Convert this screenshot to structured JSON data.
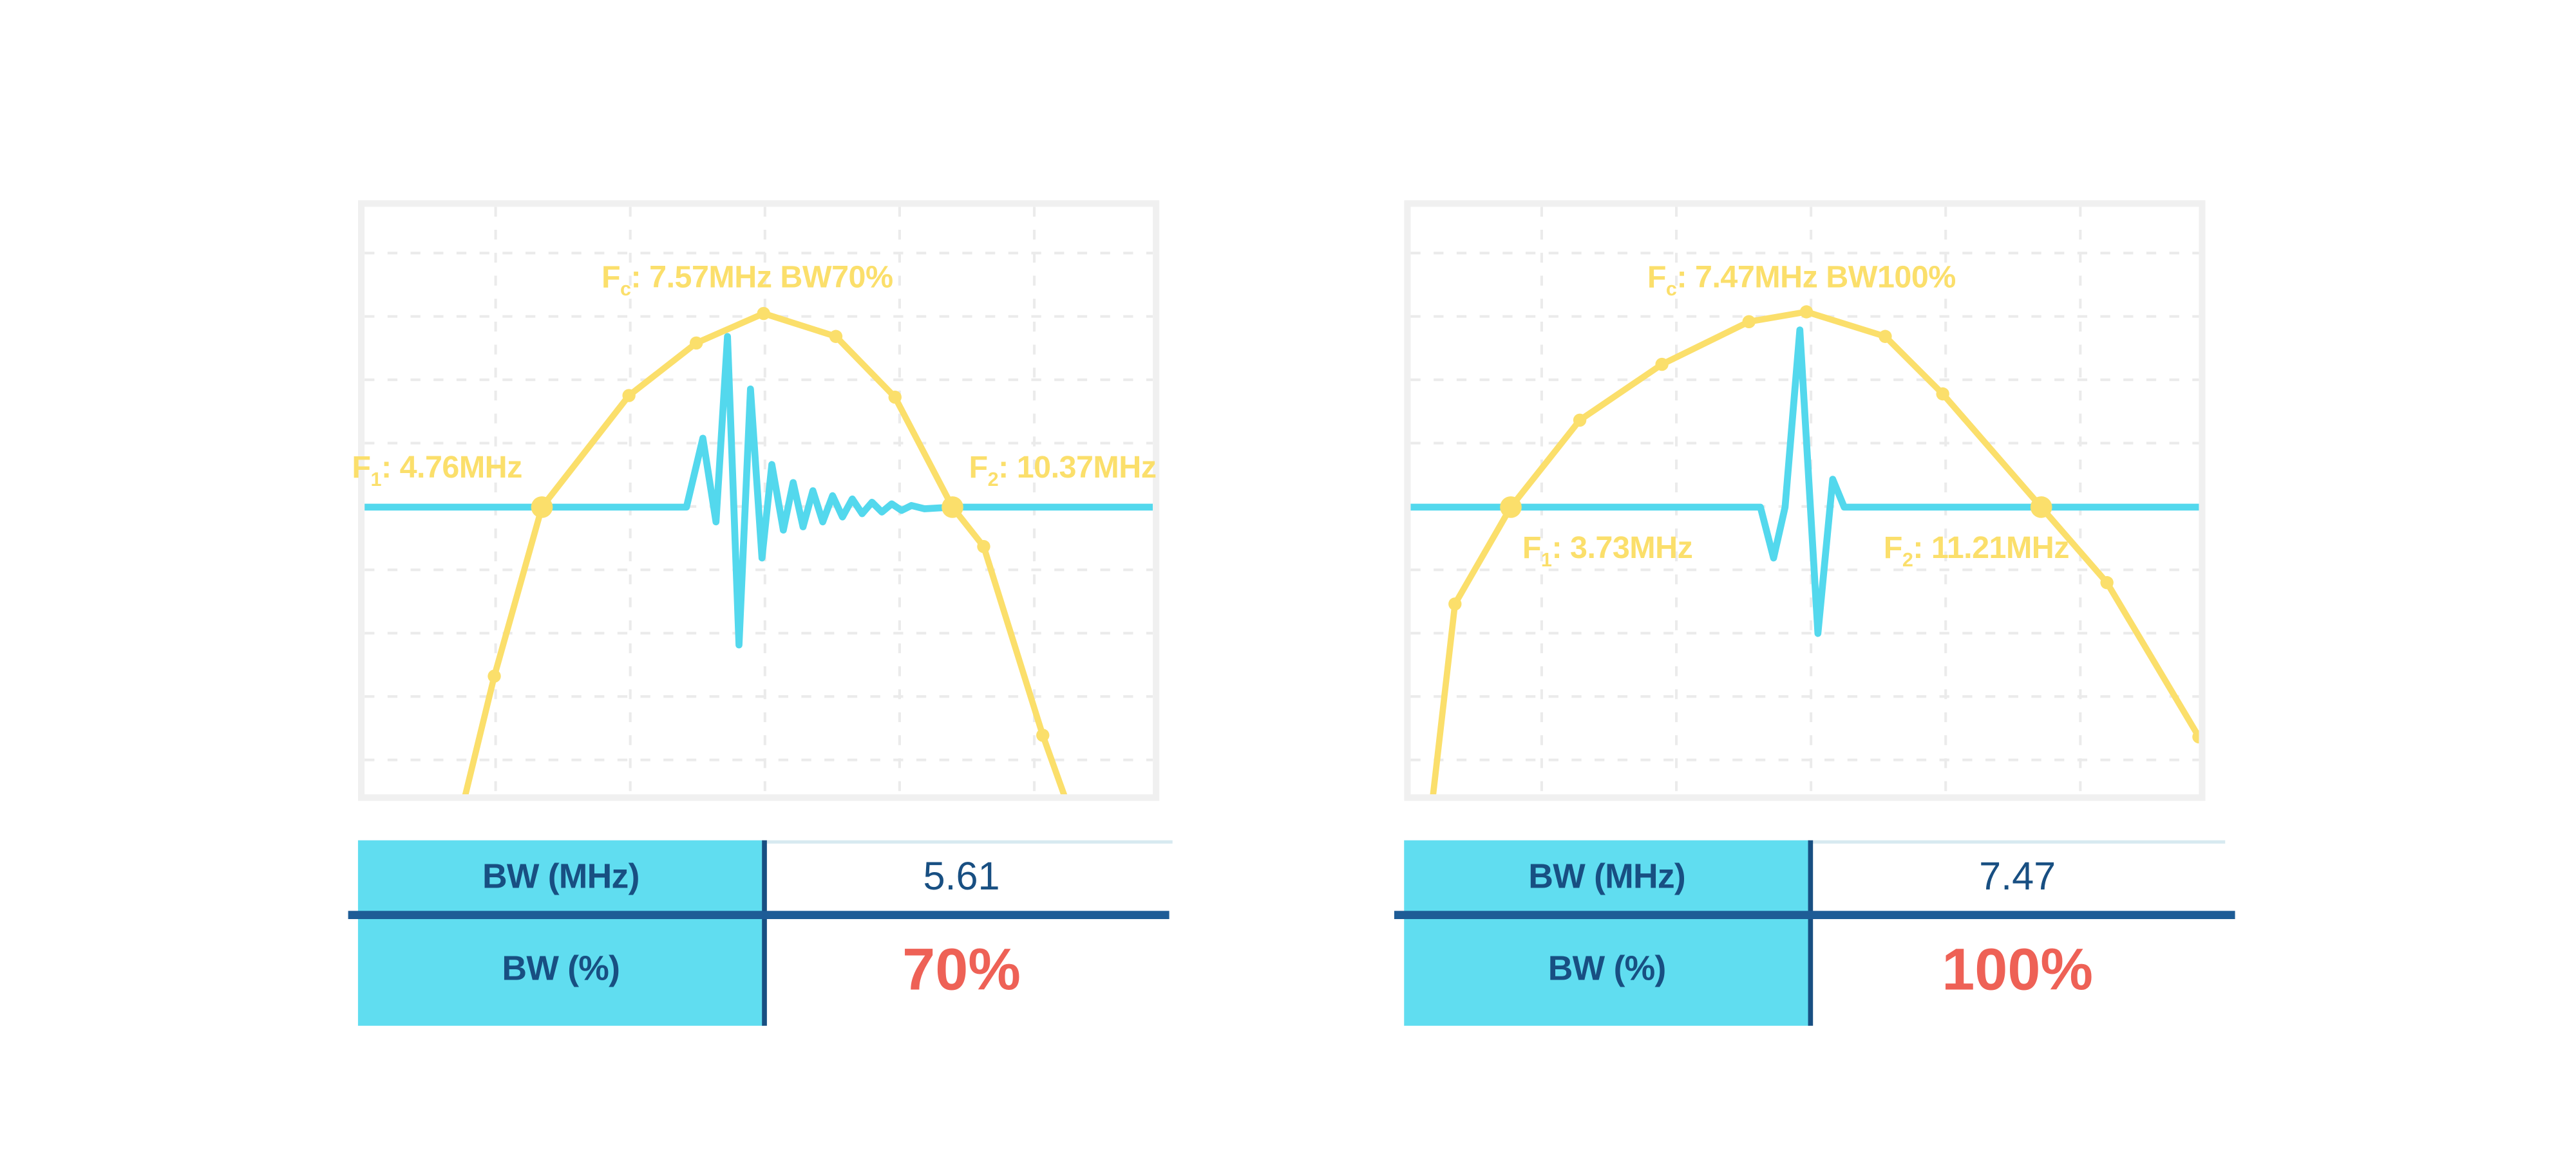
{
  "palette": {
    "yellow": "#FBDF6B",
    "cyan": "#53D8ED",
    "table_cyan": "#60DDF0",
    "navy": "#184F82",
    "red": "#EE6156",
    "divider_blue": "#1E5C96",
    "grid": "#EBEBEB",
    "chart_border": "#F0F0F0",
    "value_topline": "#D7EAF0",
    "background": "#FFFFFF"
  },
  "chart_data": [
    {
      "type": "line",
      "id": "bw70",
      "center_frequency_mhz": 7.57,
      "bandwidth_percent": 70,
      "f1_mhz": 4.76,
      "f2_mhz": 10.37,
      "bandwidth_mhz": 5.61,
      "grid": {
        "vx0": 83.8,
        "vxs": 82,
        "vn": 5,
        "hy0": 32.2,
        "hys": 38.6,
        "hn": 9
      },
      "series": [
        {
          "name": "pulse-waveform",
          "color_key": "cyan",
          "width": 4.2,
          "points": [
            [
              0,
              187,
              0
            ],
            [
              200,
              187,
              0
            ],
            [
              210,
              145,
              0
            ],
            [
              218,
              196,
              0
            ],
            [
              225,
              83,
              0
            ],
            [
              232,
              271,
              0
            ],
            [
              239,
              115,
              0
            ],
            [
              246,
              218,
              0
            ],
            [
              252,
              161,
              0
            ],
            [
              259,
              201,
              0
            ],
            [
              265,
              172,
              0
            ],
            [
              271,
              199,
              0
            ],
            [
              277,
              177,
              0
            ],
            [
              283,
              196,
              0
            ],
            [
              289,
              180,
              0
            ],
            [
              295,
              193,
              0
            ],
            [
              301,
              182,
              0
            ],
            [
              307,
              191,
              0
            ],
            [
              313,
              184,
              0
            ],
            [
              319,
              190,
              0
            ],
            [
              325,
              185,
              0
            ],
            [
              331,
              189,
              0
            ],
            [
              337,
              186,
              0
            ],
            [
              345,
              188,
              0
            ],
            [
              362,
              187,
              0
            ],
            [
              488,
              187,
              0
            ]
          ]
        },
        {
          "name": "frequency-spectrum",
          "color_key": "yellow",
          "width": 3.8,
          "points": [
            [
              64,
              368,
              0
            ],
            [
              83,
              290,
              1
            ],
            [
              112,
              187,
              2
            ],
            [
              165,
              119,
              1
            ],
            [
              206,
              87,
              1
            ],
            [
              247,
              69,
              1
            ],
            [
              291,
              83,
              1
            ],
            [
              327,
              120,
              1
            ],
            [
              362,
              187,
              2
            ],
            [
              381,
              211,
              1
            ],
            [
              417,
              326,
              1
            ],
            [
              432,
              368,
              0
            ]
          ]
        }
      ],
      "annotations": [
        {
          "id": "fc",
          "pre": "F",
          "sub": "c",
          "post": ": 7.57MHz BW70%",
          "anchor": "center-bottom",
          "x": 237,
          "y": 60
        },
        {
          "id": "f1",
          "pre": "F",
          "sub": "1",
          "post": ": 4.76MHz",
          "anchor": "right-bottom",
          "x": 100,
          "y": 176
        },
        {
          "id": "f2",
          "pre": "F",
          "sub": "2",
          "post": ": 10.37MHz",
          "anchor": "left-bottom",
          "x": 372,
          "y": 176
        }
      ]
    },
    {
      "type": "line",
      "id": "bw100",
      "center_frequency_mhz": 7.47,
      "bandwidth_percent": 100,
      "f1_mhz": 3.73,
      "f2_mhz": 11.21,
      "bandwidth_mhz": 7.47,
      "grid": {
        "vx0": 83.8,
        "vxs": 82,
        "vn": 5,
        "hy0": 32.2,
        "hys": 38.6,
        "hn": 9
      },
      "series": [
        {
          "name": "pulse-waveform",
          "color_key": "cyan",
          "width": 4.2,
          "points": [
            [
              0,
              187,
              0
            ],
            [
              217,
              187,
              0
            ],
            [
              225,
              218,
              0
            ],
            [
              232,
              187,
              0
            ],
            [
              241,
              79,
              0
            ],
            [
              252,
              264,
              0
            ],
            [
              261,
              170,
              0
            ],
            [
              268,
              187,
              0
            ],
            [
              488,
              187,
              0
            ]
          ]
        },
        {
          "name": "frequency-spectrum",
          "color_key": "yellow",
          "width": 3.8,
          "points": [
            [
              17,
              368,
              0
            ],
            [
              31,
              246,
              1
            ],
            [
              65,
              187,
              2
            ],
            [
              107,
              134,
              1
            ],
            [
              157,
              100,
              1
            ],
            [
              210,
              74,
              1
            ],
            [
              245,
              68,
              1
            ],
            [
              293,
              83,
              1
            ],
            [
              328,
              118,
              1
            ],
            [
              388,
              187,
              2
            ],
            [
              428,
              233,
              1
            ],
            [
              484,
              327,
              1
            ]
          ]
        }
      ],
      "annotations": [
        {
          "id": "fc",
          "pre": "F",
          "sub": "c",
          "post": ": 7.47MHz BW100%",
          "anchor": "center-bottom",
          "x": 242,
          "y": 60
        },
        {
          "id": "f1",
          "pre": "F",
          "sub": "1",
          "post": ": 3.73MHz",
          "anchor": "left-top",
          "x": 72,
          "y": 203
        },
        {
          "id": "f2",
          "pre": "F",
          "sub": "2",
          "post": ": 11.21MHz",
          "anchor": "right-top",
          "x": 405,
          "y": 203
        }
      ]
    }
  ],
  "tables": [
    {
      "rows": [
        {
          "label": "BW (MHz)",
          "value": "5.61"
        },
        {
          "label": "BW (%)",
          "value": "70%"
        }
      ]
    },
    {
      "rows": [
        {
          "label": "BW (MHz)",
          "value": "7.47"
        },
        {
          "label": "BW (%)",
          "value": "100%"
        }
      ]
    }
  ]
}
